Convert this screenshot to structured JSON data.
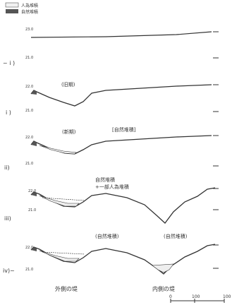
{
  "legend": {
    "items": [
      {
        "label": "人為堆積",
        "swatch": "#f2f2f2"
      },
      {
        "label": "自然堆積",
        "swatch": "#555555"
      }
    ]
  },
  "panels": [
    {
      "label": "~ i )",
      "tick_upper": "23.0",
      "tick_lower": "21.0",
      "annotation": ""
    },
    {
      "label": "i )",
      "tick_upper": "22.0",
      "tick_lower": "21.0",
      "annotation": "(旧期)"
    },
    {
      "label": "ii)",
      "tick_upper": "22.0",
      "tick_lower": "21.0",
      "annotation": "(新期)",
      "annotation2": "[自然堆積]"
    },
    {
      "label": "iii)",
      "tick_upper": "22.0",
      "tick_lower": "21.0",
      "annotation": "自然堆積",
      "annotation2": "+一部人為堆積"
    },
    {
      "label": "iv)~",
      "tick_upper": "22.0",
      "tick_lower": "21.0",
      "annotation": "(自然堆積)",
      "annotation2": "(自然堆積)"
    }
  ],
  "labels": {
    "outer": "外側の堤",
    "inner": "内側の堤"
  },
  "scale": {
    "zero": "0",
    "mid": "100",
    "end": "100"
  },
  "colors": {
    "line": "#333333",
    "fill_dark": "#555555",
    "fill_light": "#eeeeee"
  }
}
